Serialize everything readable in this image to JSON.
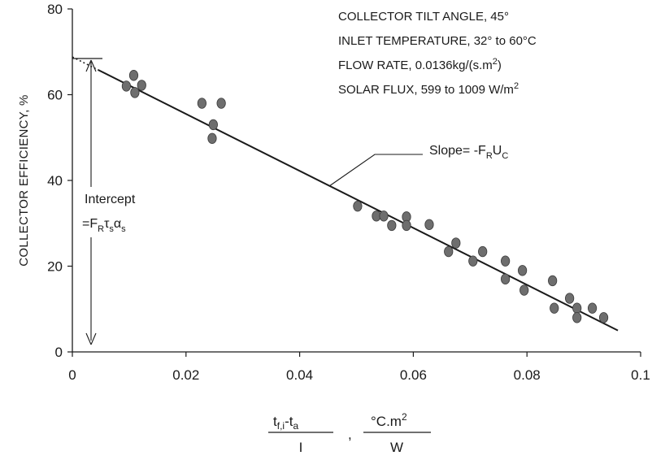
{
  "chart_data": {
    "type": "scatter",
    "title": "",
    "ylabel": "COLLECTOR EFFICIENCY, %",
    "xlabel": {
      "frac1_num_main": "t",
      "frac1_num_sub": "f,i",
      "frac1_num_mid": "-t",
      "frac1_num_sub2": "a",
      "frac1_den": "I",
      "separator": ",",
      "frac2_num": "°C.m",
      "frac2_num_sup": "2",
      "frac2_den": "W"
    },
    "xlim": [
      0,
      0.1
    ],
    "ylim": [
      0,
      80
    ],
    "xticks": [
      "0",
      "0.02",
      "0.04",
      "0.06",
      "0.08",
      "0.1"
    ],
    "yticks": [
      "0",
      "20",
      "40",
      "60",
      "80"
    ],
    "notes": [
      {
        "text": "COLLECTOR TILT ANGLE, 45°"
      },
      {
        "text": "INLET TEMPERATURE, 32° to 60°C"
      },
      {
        "text": "FLOW RATE, 0.0136kg/(s.m",
        "sup": "2",
        "tail": ")"
      },
      {
        "text": "SOLAR FLUX, 599 to 1009 W/m",
        "sup": "2",
        "tail": ""
      }
    ],
    "slope_label": {
      "prefix": "Slope= -F",
      "sub1": "R",
      "mid": "U",
      "sub2": "C"
    },
    "intercept_label": {
      "line1": "Intercept",
      "eq": "=F",
      "sub1": "R",
      "tau": "τ",
      "sub2": "s",
      "alpha": "α",
      "sub3": "s"
    },
    "fit_line": {
      "x_start": 0.0,
      "y_start": 68.8,
      "x_end": 0.096,
      "y_end": 5.0,
      "dotted_until_x": 0.0045
    },
    "points": [
      {
        "x": 0.0095,
        "y": 62.0
      },
      {
        "x": 0.0108,
        "y": 64.5
      },
      {
        "x": 0.011,
        "y": 60.5
      },
      {
        "x": 0.0122,
        "y": 62.2
      },
      {
        "x": 0.0228,
        "y": 58.0
      },
      {
        "x": 0.0262,
        "y": 58.0
      },
      {
        "x": 0.0248,
        "y": 53.0
      },
      {
        "x": 0.0246,
        "y": 49.8
      },
      {
        "x": 0.0502,
        "y": 34.0
      },
      {
        "x": 0.0535,
        "y": 31.7
      },
      {
        "x": 0.0548,
        "y": 31.7
      },
      {
        "x": 0.0562,
        "y": 29.5
      },
      {
        "x": 0.0588,
        "y": 31.5
      },
      {
        "x": 0.0588,
        "y": 29.5
      },
      {
        "x": 0.0628,
        "y": 29.7
      },
      {
        "x": 0.0662,
        "y": 23.4
      },
      {
        "x": 0.0675,
        "y": 25.4
      },
      {
        "x": 0.0705,
        "y": 21.2
      },
      {
        "x": 0.0722,
        "y": 23.4
      },
      {
        "x": 0.0762,
        "y": 21.2
      },
      {
        "x": 0.0762,
        "y": 17.0
      },
      {
        "x": 0.0792,
        "y": 19.0
      },
      {
        "x": 0.0795,
        "y": 14.4
      },
      {
        "x": 0.0845,
        "y": 16.6
      },
      {
        "x": 0.0848,
        "y": 10.2
      },
      {
        "x": 0.0875,
        "y": 12.5
      },
      {
        "x": 0.0888,
        "y": 10.2
      },
      {
        "x": 0.0888,
        "y": 8.0
      },
      {
        "x": 0.0915,
        "y": 10.2
      },
      {
        "x": 0.0935,
        "y": 8.0
      }
    ],
    "colors": {
      "axis": "#1a1a1a",
      "point": "#6e6e6e",
      "point_stroke": "#3a3a3a",
      "line": "#1a1a1a"
    }
  }
}
